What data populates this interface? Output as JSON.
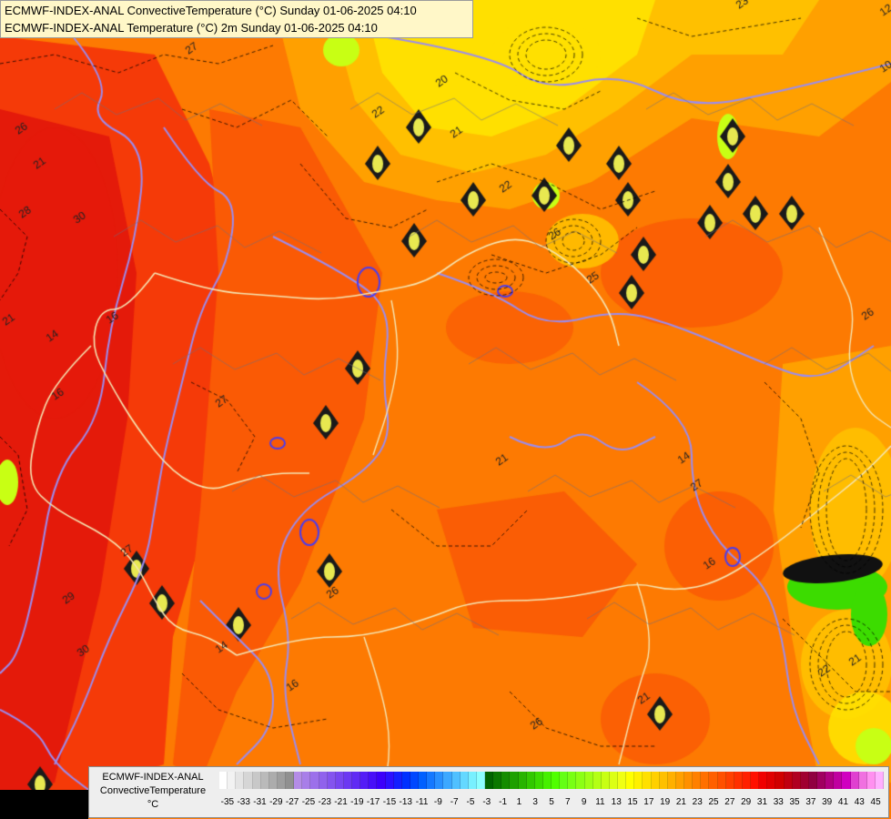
{
  "header": {
    "line1": "ECMWF-INDEX-ANAL ConvectiveTemperature (°C) Sunday 01-06-2025 04:10",
    "line2": "ECMWF-INDEX-ANAL Temperature (°C) 2m Sunday 01-06-2025 04:10"
  },
  "legend": {
    "label_line1": "ECMWF-INDEX-ANAL",
    "label_line2": "ConvectiveTemperature",
    "unit": "°C",
    "ticks": [
      "-35",
      "-33",
      "-31",
      "-29",
      "-27",
      "-25",
      "-23",
      "-21",
      "-19",
      "-17",
      "-15",
      "-13",
      "-11",
      "-9",
      "-7",
      "-5",
      "-3",
      "-1",
      "1",
      "3",
      "5",
      "7",
      "9",
      "11",
      "13",
      "15",
      "17",
      "19",
      "21",
      "23",
      "25",
      "27",
      "29",
      "31",
      "33",
      "35",
      "37",
      "39",
      "41",
      "43",
      "45"
    ],
    "colors": [
      "#ffffff",
      "#f2f2f2",
      "#e4e4e4",
      "#d6d6d6",
      "#c8c8c8",
      "#bababa",
      "#acacac",
      "#9e9e9e",
      "#909090",
      "#b48ce6",
      "#a87ee8",
      "#9c70ea",
      "#9062ec",
      "#8454ee",
      "#7846f0",
      "#6c38f2",
      "#602af4",
      "#541cf6",
      "#480ef8",
      "#3c00fa",
      "#2c10ff",
      "#1420ff",
      "#0030ff",
      "#0048ff",
      "#0060ff",
      "#1478ff",
      "#2890ff",
      "#3ca8ff",
      "#50c0ff",
      "#64d8ff",
      "#78f0ff",
      "#8cffff",
      "#006400",
      "#0a7800",
      "#148c00",
      "#1ea000",
      "#28b400",
      "#32c800",
      "#3cdc00",
      "#46f000",
      "#50ff00",
      "#64ff14",
      "#78ff14",
      "#8cff14",
      "#a0ff14",
      "#b4ff14",
      "#c8ff14",
      "#dcff14",
      "#f0ff14",
      "#ffff00",
      "#fff000",
      "#ffe000",
      "#ffd000",
      "#ffc000",
      "#ffb000",
      "#ffa000",
      "#ff9000",
      "#ff8000",
      "#ff7000",
      "#ff6000",
      "#ff5000",
      "#ff4000",
      "#ff3000",
      "#ff2000",
      "#ff1000",
      "#f00000",
      "#e00000",
      "#d00000",
      "#c00010",
      "#b00020",
      "#a00030",
      "#900040",
      "#a00060",
      "#b00080",
      "#c000a0",
      "#d000c0",
      "#e040d0",
      "#f070e0",
      "#ff90f0",
      "#ffb0ff"
    ]
  },
  "map": {
    "contour_labels": [
      "27",
      "26",
      "21",
      "28",
      "30",
      "21",
      "14",
      "16",
      "20",
      "22",
      "21",
      "22",
      "26",
      "25",
      "27",
      "21",
      "27",
      "26",
      "14",
      "16",
      "26",
      "14",
      "21",
      "30",
      "29",
      "27",
      "16",
      "16",
      "26",
      "22",
      "21",
      "23",
      "12",
      "10"
    ],
    "palette": {
      "deep_red": "#e41a0a",
      "red": "#f53a08",
      "orange_red": "#fa5a05",
      "orange": "#fd7a02",
      "light_orange": "#ffa000",
      "amber": "#ffc000",
      "yellow": "#ffe000",
      "yellow_green": "#c8ff14",
      "green": "#3cdc00",
      "border_line": "#f5e6b4",
      "isotherm": "#9a8cf0",
      "isotherm_dark": "#4a3cf0"
    }
  }
}
